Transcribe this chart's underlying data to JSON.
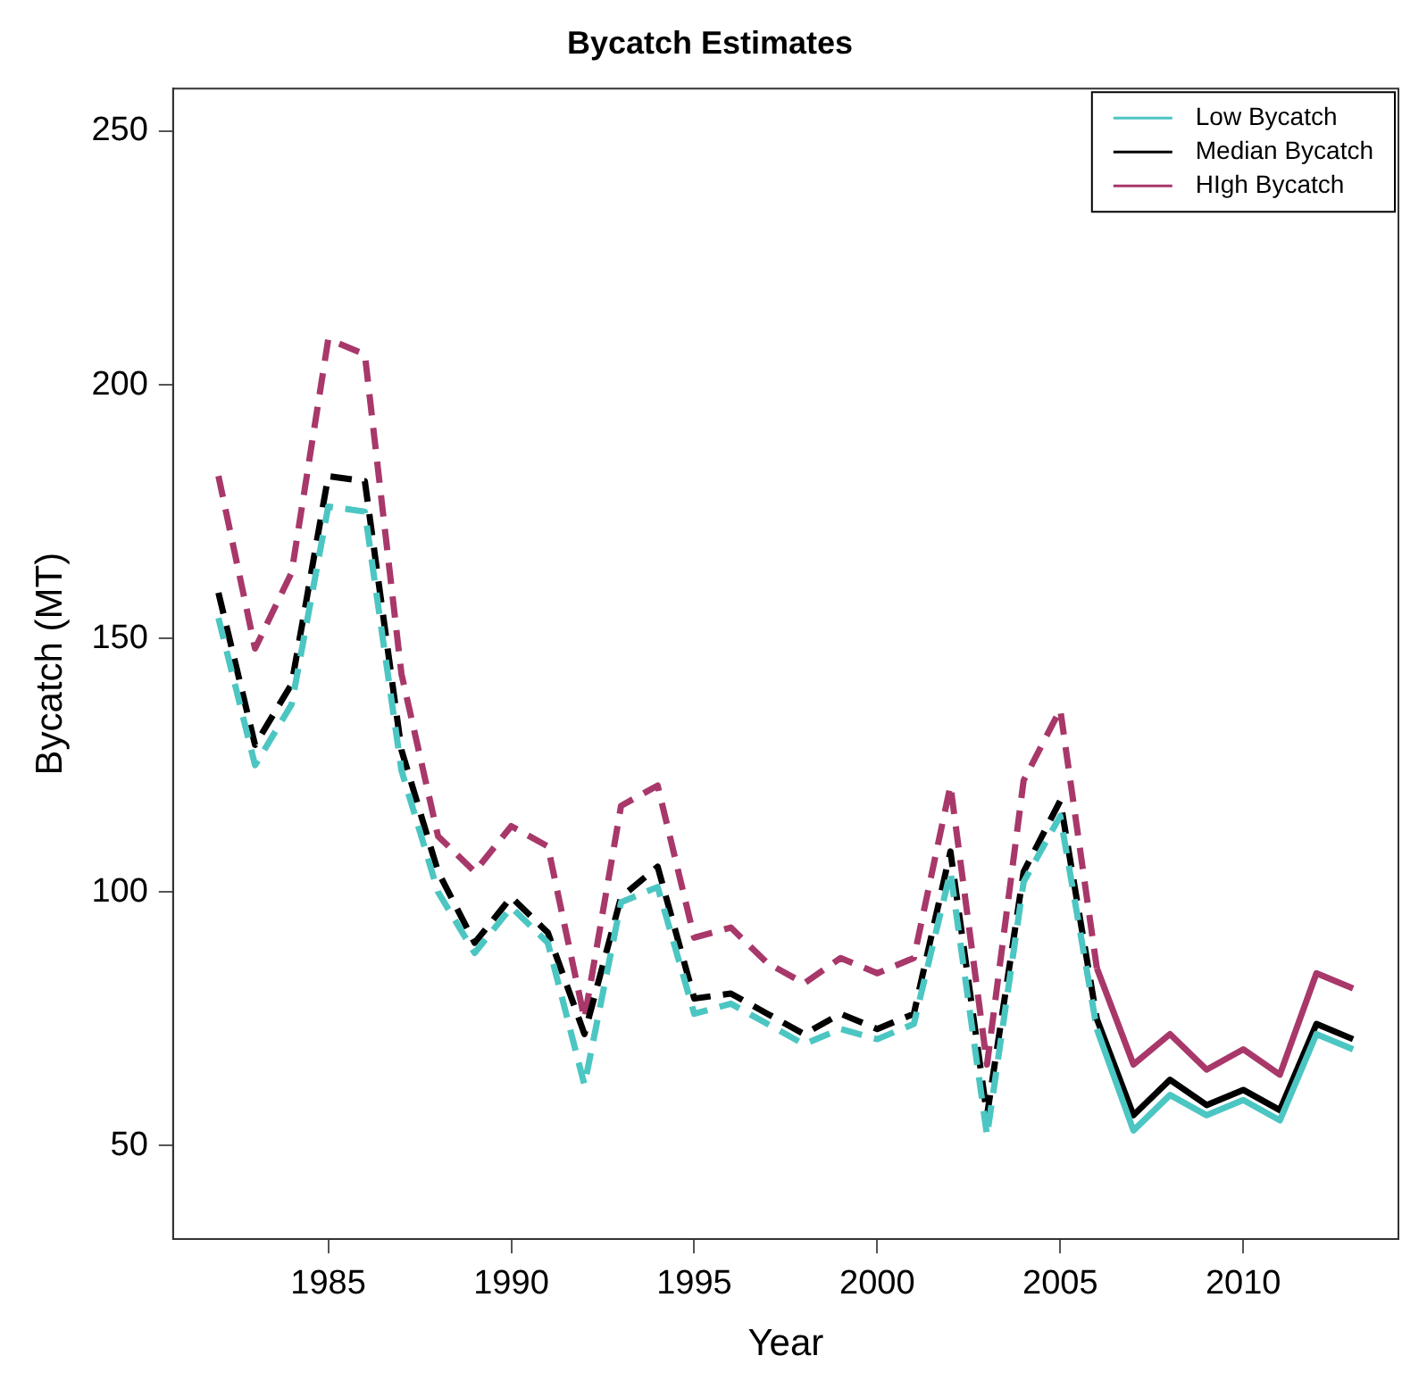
{
  "chart_data": {
    "type": "line",
    "title": "Bycatch Estimates",
    "xlabel": "Year",
    "ylabel": "Bycatch (MT)",
    "xlim": [
      1980.76,
      2014.24
    ],
    "ylim": [
      31.6,
      258.4
    ],
    "xticks": [
      1985,
      1990,
      1995,
      2000,
      2005,
      2010
    ],
    "yticks": [
      50,
      100,
      150,
      200,
      250
    ],
    "legend": "top right",
    "marker": "none",
    "series": [
      {
        "name": "Low Bycatch",
        "color": "#4cc6c2",
        "line_style": "solid",
        "x": [
          2006,
          2007,
          2008,
          2009,
          2010,
          2011,
          2012,
          2013
        ],
        "values": [
          73,
          53,
          60,
          56,
          59,
          55,
          72,
          69
        ]
      },
      {
        "name": "Median Bycatch",
        "color": "#000000",
        "line_style": "solid",
        "x": [
          2006,
          2007,
          2008,
          2009,
          2010,
          2011,
          2012,
          2013
        ],
        "values": [
          75,
          56,
          63,
          58,
          61,
          57,
          74,
          71
        ]
      },
      {
        "name": "HIgh Bycatch",
        "color": "#a8386a",
        "line_style": "solid",
        "x": [
          2006,
          2007,
          2008,
          2009,
          2010,
          2011,
          2012,
          2013
        ],
        "values": [
          85,
          66,
          72,
          65,
          69,
          64,
          84,
          81
        ]
      },
      {
        "color": "#4cc6c2",
        "line_style": "dashed",
        "x": [
          1982,
          1983,
          1984,
          1985,
          1986,
          1987,
          1988,
          1989,
          1990,
          1991,
          1992,
          1993,
          1994,
          1995,
          1996,
          1997,
          1998,
          1999,
          2000,
          2001,
          2002,
          2003,
          2004,
          2005,
          2006
        ],
        "values": [
          154,
          125,
          137,
          176,
          175,
          124,
          100,
          88,
          97,
          90,
          62,
          98,
          101,
          76,
          78,
          74,
          70,
          73,
          71,
          74,
          104,
          52,
          102,
          115,
          73
        ]
      },
      {
        "color": "#000000",
        "line_style": "dashed",
        "x": [
          1982,
          1983,
          1984,
          1985,
          1986,
          1987,
          1988,
          1989,
          1990,
          1991,
          1992,
          1993,
          1994,
          1995,
          1996,
          1997,
          1998,
          1999,
          2000,
          2001,
          2002,
          2003,
          2004,
          2005,
          2006
        ],
        "values": [
          159,
          129,
          141,
          182,
          181,
          128,
          104,
          90,
          99,
          92,
          72,
          99,
          105,
          79,
          80,
          76,
          72,
          76,
          73,
          76,
          108,
          56,
          104,
          118,
          75
        ]
      },
      {
        "color": "#a8386a",
        "line_style": "dashed",
        "x": [
          1982,
          1983,
          1984,
          1985,
          1986,
          1987,
          1988,
          1989,
          1990,
          1991,
          1992,
          1993,
          1994,
          1995,
          1996,
          1997,
          1998,
          1999,
          2000,
          2001,
          2002,
          2003,
          2004,
          2005,
          2006
        ],
        "values": [
          182,
          148,
          163,
          209,
          206,
          143,
          111,
          104,
          113,
          109,
          75,
          117,
          121,
          91,
          93,
          86,
          82,
          87,
          84,
          87,
          121,
          66,
          122,
          136,
          85
        ]
      }
    ]
  }
}
